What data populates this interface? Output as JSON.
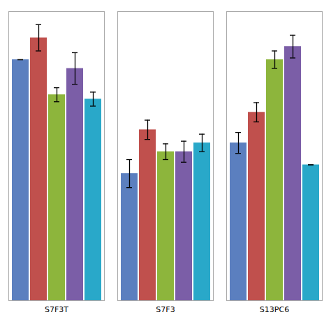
{
  "chart_data": {
    "type": "bar",
    "categories": [
      "S7F3T",
      "S7F3",
      "S13PC6"
    ],
    "series": [
      {
        "color": "#5B7FBF",
        "values": [
          27.5,
          14.5,
          18.0
        ],
        "errors": [
          0.0,
          1.6,
          1.2
        ]
      },
      {
        "color": "#C0504D",
        "values": [
          30.0,
          19.5,
          21.5
        ],
        "errors": [
          1.5,
          1.1,
          1.1
        ]
      },
      {
        "color": "#8DB53C",
        "values": [
          23.5,
          17.0,
          27.5
        ],
        "errors": [
          0.8,
          0.9,
          1.0
        ]
      },
      {
        "color": "#7B5EA7",
        "values": [
          26.5,
          17.0,
          29.0
        ],
        "errors": [
          1.8,
          1.2,
          1.3
        ]
      },
      {
        "color": "#29A8C9",
        "values": [
          23.0,
          18.0,
          15.5
        ],
        "errors": [
          0.8,
          1.0,
          0.0
        ]
      }
    ],
    "ylim": [
      0,
      33
    ],
    "tick_labels": "x",
    "grid": false
  }
}
